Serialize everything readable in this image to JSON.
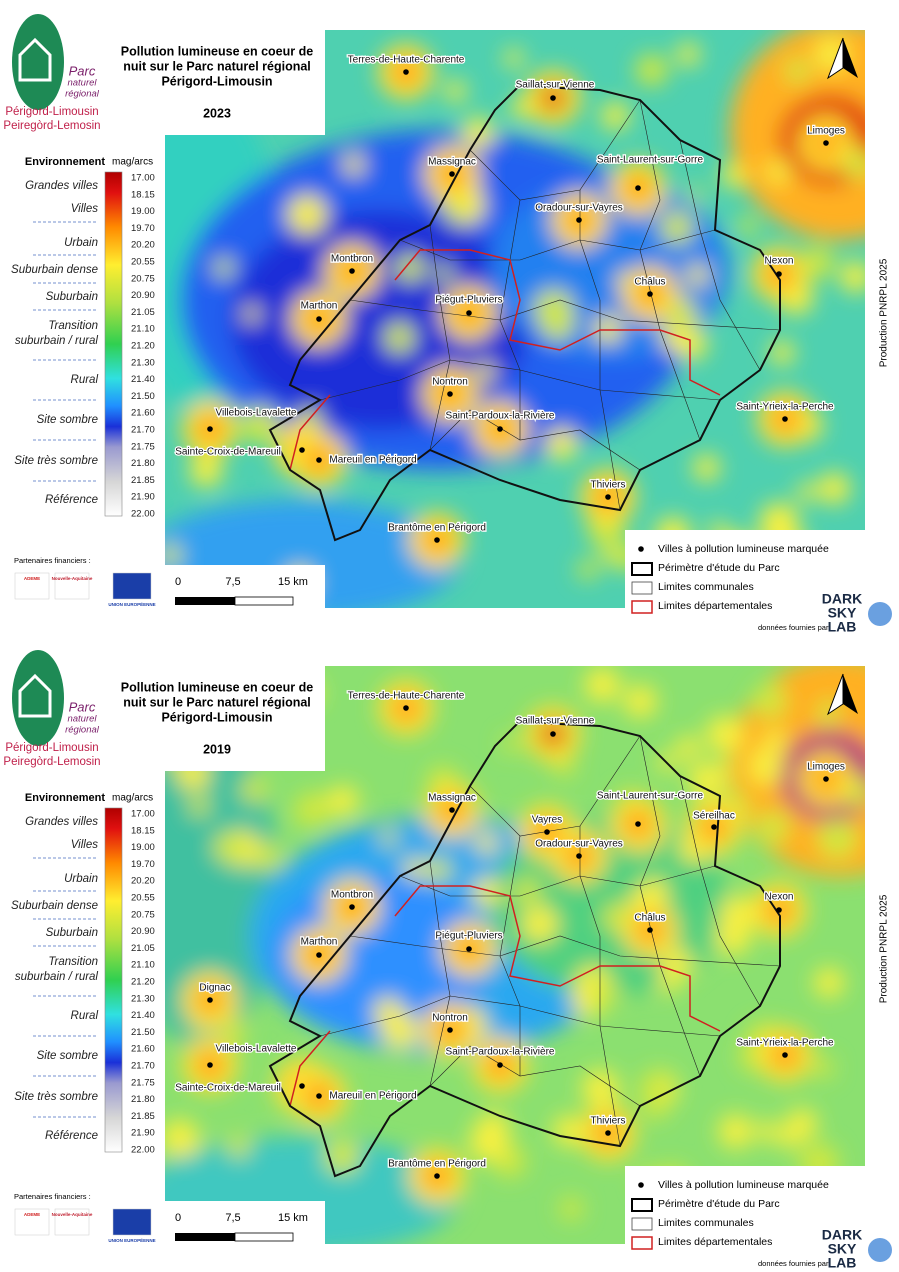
{
  "logo": {
    "lines": [
      "Parc",
      "naturel",
      "régional"
    ],
    "name": "Périgord-Limousin",
    "name_oc": "Peiregòrd-Lemosin"
  },
  "title_lines": [
    "Pollution lumineuse en coeur de",
    "nuit sur le Parc naturel régional",
    "Périgord-Limousin"
  ],
  "legend": {
    "heading": "Environnement",
    "unit": "mag/arcs",
    "classes": [
      [
        "Grandes villes"
      ],
      [
        "Villes"
      ],
      [
        "Urbain"
      ],
      [
        "Suburbain dense"
      ],
      [
        "Suburbain"
      ],
      [
        "Transition",
        "suburbain / rural"
      ],
      [
        "Rural"
      ],
      [
        "Site sombre"
      ],
      [
        "Site très sombre"
      ],
      [
        "Référence"
      ]
    ],
    "scale": [
      "17.00",
      "18.15",
      "19.00",
      "19.70",
      "20.20",
      "20.55",
      "20.75",
      "20.90",
      "21.05",
      "21.10",
      "21.20",
      "21.30",
      "21.40",
      "21.50",
      "21.60",
      "21.70",
      "21.75",
      "21.80",
      "21.85",
      "21.90",
      "22.00"
    ]
  },
  "partners": {
    "label": "Partenaires financiers :",
    "logos": [
      "ADEME",
      "Nouvelle-Aquitaine",
      "UNION EUROPÉENNE"
    ]
  },
  "scale_bar": [
    "0",
    "7,5",
    "15 km"
  ],
  "map_legend": [
    "Villes à pollution lumineuse marquée",
    "Périmètre d'étude du Parc",
    "Limites communales",
    "Limites départementales"
  ],
  "credit": {
    "label": "données fournies par",
    "brand": [
      "DARK",
      "SKY",
      "LAB"
    ]
  },
  "production": "Production PNRPL 2025",
  "panels": [
    {
      "year": "2023",
      "towns": [
        "Terres-de-Haute-Charente",
        "Saillat-sur-Vienne",
        "Limoges",
        "Massignac",
        "Saint-Laurent-sur-Gorre",
        "Oradour-sur-Vayres",
        "Montbron",
        "Nexon",
        "Châlus",
        "Piégut-Pluviers",
        "Marthon",
        "Nontron",
        "Saint-Yrieix-la-Perche",
        "Villebois-Lavalette",
        "Saint-Pardoux-la-Rivière",
        "Sainte-Croix-de-Mareuil",
        "Mareuil en Périgord",
        "Thiviers",
        "Brantôme en Périgord"
      ]
    },
    {
      "year": "2019",
      "towns": [
        "Terres-de-Haute-Charente",
        "Saillat-sur-Vienne",
        "Limoges",
        "Massignac",
        "Saint-Laurent-sur-Gorre",
        "Vayres",
        "Séreilhac",
        "Oradour-sur-Vayres",
        "Montbron",
        "Nexon",
        "Châlus",
        "Piégut-Pluviers",
        "Marthon",
        "Dignac",
        "Nontron",
        "Saint-Yrieix-la-Perche",
        "Villebois-Lavalette",
        "Saint-Pardoux-la-Rivière",
        "Sainte-Croix-de-Mareuil",
        "Mareuil en Périgord",
        "Thiviers",
        "Brantôme en Périgord"
      ]
    }
  ]
}
